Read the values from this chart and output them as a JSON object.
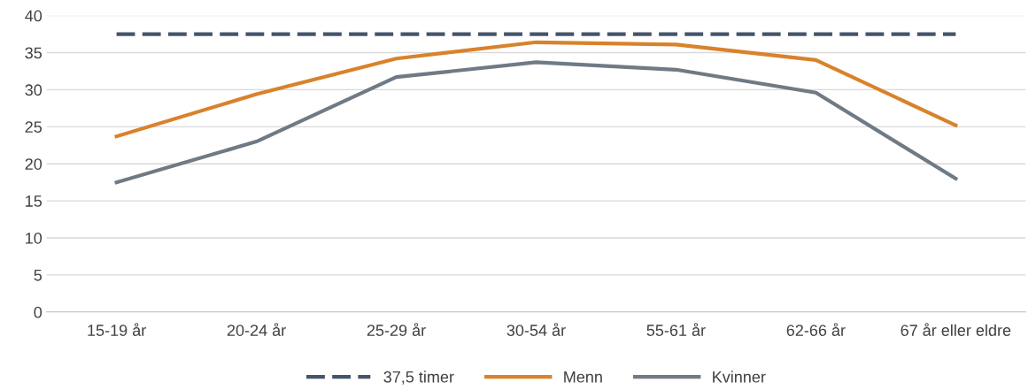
{
  "chart_data": {
    "type": "line",
    "categories": [
      "15-19 år",
      "20-24 år",
      "25-29 år",
      "30-54 år",
      "55-61 år",
      "62-66 år",
      "67 år eller eldre"
    ],
    "series": [
      {
        "name": "37,5 timer",
        "color": "#44546a",
        "line_style": "dashed",
        "values": [
          37.5,
          37.5,
          37.5,
          37.5,
          37.5,
          37.5,
          37.5
        ]
      },
      {
        "name": "Menn",
        "color": "#d9822b",
        "line_style": "solid",
        "values": [
          23.7,
          29.4,
          34.2,
          36.4,
          36.1,
          34.0,
          25.2
        ]
      },
      {
        "name": "Kvinner",
        "color": "#6f7a85",
        "line_style": "solid",
        "values": [
          17.5,
          23.0,
          31.7,
          33.7,
          32.7,
          29.6,
          18.0
        ]
      }
    ],
    "ylim": [
      0,
      40
    ],
    "yticks": [
      0,
      5,
      10,
      15,
      20,
      25,
      30,
      35,
      40
    ],
    "grid": "y",
    "legend": "bottom",
    "marker": "none"
  }
}
